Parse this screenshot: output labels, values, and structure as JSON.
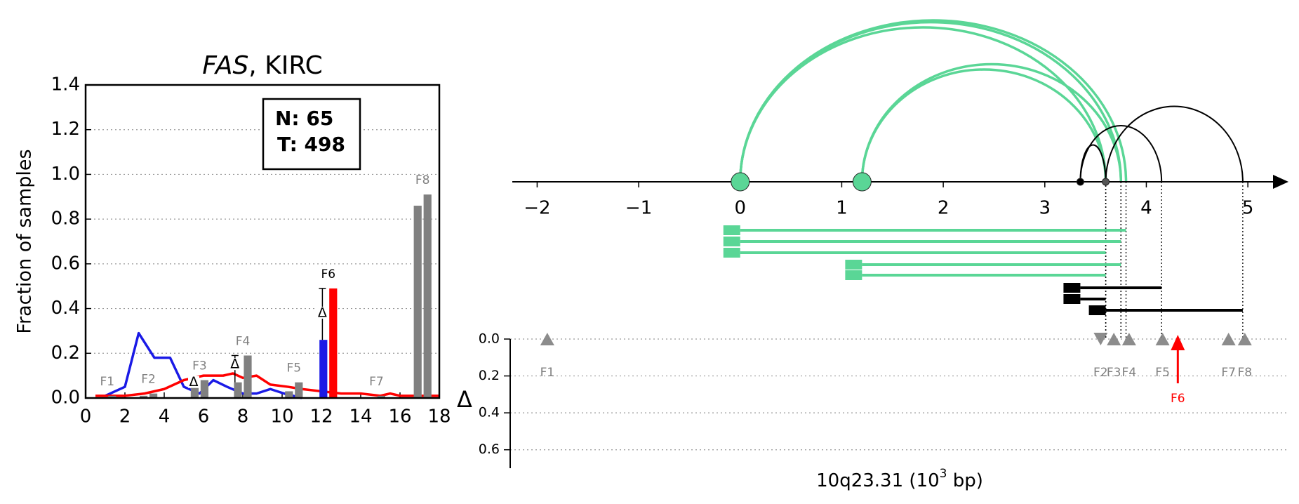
{
  "chart_data": [
    {
      "type": "feature-profile",
      "title": [
        {
          "text": "FAS",
          "italic": true
        },
        {
          "text": ", KIRC",
          "italic": false
        }
      ],
      "ylabel": "Fraction of samples",
      "annotation": [
        "N: 65",
        "T: 498"
      ],
      "delta_symbol": "Δ",
      "xlim": [
        0,
        18
      ],
      "xticks": [
        0,
        2,
        4,
        6,
        8,
        10,
        12,
        14,
        16,
        18
      ],
      "ylim": [
        0,
        1.4
      ],
      "yticks": [
        {
          "value": 0,
          "label": "0.0"
        },
        0.2,
        0.4,
        0.6,
        0.8,
        {
          "value": 1,
          "label": "1.0"
        },
        1.2,
        1.4
      ],
      "grid": true,
      "bar_color": "#808080",
      "series": [
        {
          "color": "#1a1ae6",
          "x": [
            1,
            2,
            2.7,
            3.5,
            4.3,
            5,
            5.8,
            6.5,
            7.2,
            8,
            8.7,
            9.4,
            10.1,
            11
          ],
          "values": [
            0.01,
            0.05,
            0.29,
            0.18,
            0.18,
            0.05,
            0.02,
            0.08,
            0.05,
            0.02,
            0.02,
            0.04,
            0.02,
            0.0
          ]
        },
        {
          "color": "#ff0000",
          "x": [
            0.5,
            2,
            3,
            4,
            5,
            6,
            7,
            7.5,
            8,
            8.7,
            9.4,
            10.3,
            11,
            12,
            13,
            14,
            15,
            15.5,
            16,
            18
          ],
          "values": [
            0.01,
            0.01,
            0.02,
            0.04,
            0.08,
            0.1,
            0.1,
            0.11,
            0.09,
            0.1,
            0.06,
            0.05,
            0.04,
            0.03,
            0.02,
            0.02,
            0.01,
            0.02,
            0.01,
            0.01
          ]
        }
      ],
      "features": [
        {
          "name": "F1",
          "x": 1.1,
          "values": [
            0.0,
            0.01
          ],
          "highlight": false
        },
        {
          "name": "F2",
          "x": 3.2,
          "values": [
            0.01,
            0.02
          ],
          "highlight": false
        },
        {
          "name": "F3",
          "x": 5.8,
          "values": [
            0.05,
            0.08
          ],
          "highlight": false
        },
        {
          "name": "F4",
          "x": 8.0,
          "values": [
            0.07,
            0.19
          ],
          "highlight": false
        },
        {
          "name": "F5",
          "x": 10.6,
          "values": [
            0.03,
            0.07
          ],
          "highlight": false
        },
        {
          "name": "F6",
          "x": 12.35,
          "values": [
            0.26,
            0.49
          ],
          "highlight": true
        },
        {
          "name": "F7",
          "x": 14.8,
          "values": [
            0.0,
            0.01
          ],
          "highlight": false
        },
        {
          "name": "F8",
          "x": 17.15,
          "values": [
            0.86,
            0.91
          ],
          "highlight": false
        }
      ],
      "deltas": [
        {
          "x": 5.5,
          "value": 0.07,
          "lo": 0.05,
          "hi": 0.08
        },
        {
          "x": 7.6,
          "value": 0.15,
          "lo": 0.07,
          "hi": 0.19
        },
        {
          "x": 12.05,
          "value": 0.38,
          "lo": 0.26,
          "hi": 0.49
        }
      ]
    },
    {
      "type": "splice-graph",
      "xlabel": [
        "10q23.31 (10",
        "3",
        " bp)"
      ],
      "xlim": [
        -2.3,
        5.4
      ],
      "xticks": [
        {
          "value": -2,
          "label": "−2"
        },
        {
          "value": -1,
          "label": "−1"
        },
        0,
        1,
        2,
        3,
        4,
        5
      ],
      "nodes": [
        {
          "x": 0,
          "kind": "exon"
        },
        {
          "x": 1.2,
          "kind": "exon"
        },
        {
          "x": 3.35,
          "kind": "site"
        },
        {
          "x": 3.6,
          "kind": "site"
        }
      ],
      "arcs": [
        {
          "from": 0,
          "to": 3.8,
          "color": "#5ad696"
        },
        {
          "from": 0,
          "to": 3.75,
          "color": "#5ad696"
        },
        {
          "from": 0,
          "to": 3.6,
          "color": "#5ad696"
        },
        {
          "from": 1.2,
          "to": 3.75,
          "color": "#5ad696"
        },
        {
          "from": 1.2,
          "to": 3.6,
          "color": "#5ad696"
        },
        {
          "from": 3.35,
          "to": 3.6,
          "color": "#000000"
        },
        {
          "from": 3.35,
          "to": 4.15,
          "color": "#000000"
        },
        {
          "from": 3.6,
          "to": 4.95,
          "color": "#000000"
        }
      ],
      "isoforms": [
        {
          "start": 0,
          "end": 3.8,
          "color": "#5ad696"
        },
        {
          "start": 0,
          "end": 3.75,
          "color": "#5ad696"
        },
        {
          "start": 0,
          "end": 3.6,
          "color": "#5ad696"
        },
        {
          "start": 1.2,
          "end": 3.75,
          "color": "#5ad696"
        },
        {
          "start": 1.2,
          "end": 3.6,
          "color": "#5ad696"
        },
        {
          "start": 3.35,
          "end": 4.15,
          "color": "#000000"
        },
        {
          "start": 3.35,
          "end": 3.6,
          "color": "#000000"
        },
        {
          "start": 3.6,
          "end": 4.95,
          "color": "#000000"
        }
      ],
      "ylabel": "Δ",
      "ylim": [
        0,
        0.7
      ],
      "yticks": [
        {
          "value": 0,
          "label": "0.0"
        },
        0.2,
        0.4,
        0.6
      ],
      "feature_color": "#808080",
      "highlight_color": "#ff0000",
      "features": [
        {
          "name": "F1",
          "x": -1.9,
          "value": 0,
          "direction": "up",
          "highlight": false
        },
        {
          "name": "F2",
          "x": 3.55,
          "value": 0,
          "direction": "down",
          "highlight": false
        },
        {
          "name": "F3",
          "x": 3.68,
          "value": 0,
          "direction": "up",
          "highlight": false
        },
        {
          "name": "F4",
          "x": 3.83,
          "value": 0,
          "direction": "up",
          "highlight": false
        },
        {
          "name": "F5",
          "x": 4.16,
          "value": 0,
          "direction": "up",
          "highlight": false
        },
        {
          "name": "F6",
          "x": 4.31,
          "value": 0.24,
          "direction": "up",
          "highlight": true
        },
        {
          "name": "F7",
          "x": 4.81,
          "value": 0,
          "direction": "up",
          "highlight": false
        },
        {
          "name": "F8",
          "x": 4.97,
          "value": 0,
          "direction": "up",
          "highlight": false
        }
      ]
    }
  ]
}
